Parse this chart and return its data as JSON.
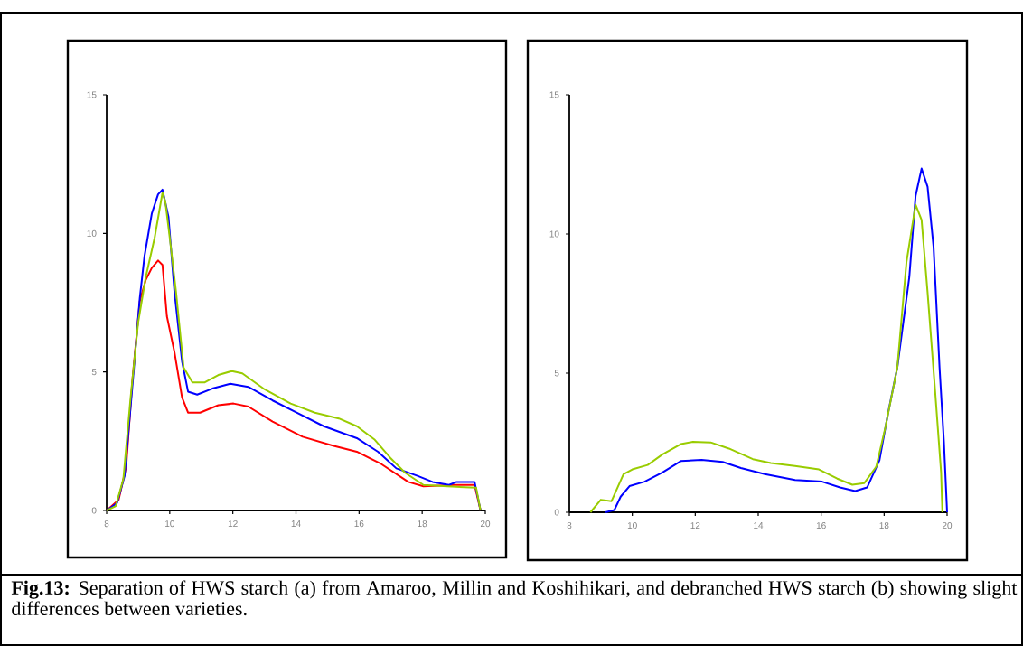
{
  "chart_data": [
    {
      "type": "line",
      "marker": "none",
      "xlim": [
        8,
        20
      ],
      "ylim": [
        0,
        15
      ],
      "xticks": [
        8,
        10,
        12,
        14,
        16,
        18,
        20
      ],
      "yticks": [
        0,
        5,
        10,
        15
      ],
      "series": [
        {
          "color": "#ff0000",
          "x": [
            8,
            8.38,
            8.62,
            8.81,
            9.05,
            9.24,
            9.43,
            9.63,
            9.77,
            9.91,
            10.15,
            10.39,
            10.58,
            10.96,
            11.54,
            12.02,
            12.49,
            13.26,
            14.21,
            15.17,
            15.93,
            16.7,
            17.56,
            18.04,
            19.0,
            19.66,
            19.85
          ],
          "values": [
            0,
            0.38,
            1.58,
            4.62,
            7.55,
            8.32,
            8.75,
            9.02,
            8.86,
            7.01,
            5.71,
            4.08,
            3.53,
            3.53,
            3.8,
            3.86,
            3.75,
            3.21,
            2.66,
            2.34,
            2.12,
            1.68,
            1.03,
            0.87,
            0.92,
            0.92,
            0
          ]
        },
        {
          "color": "#0000ff",
          "x": [
            8,
            8.33,
            8.57,
            8.81,
            9.05,
            9.2,
            9.43,
            9.63,
            9.77,
            9.96,
            10.15,
            10.39,
            10.58,
            10.87,
            11.35,
            11.92,
            12.49,
            13.26,
            14.02,
            14.88,
            15.93,
            16.6,
            17.18,
            17.85,
            18.33,
            18.85,
            19.09,
            19.66,
            19.85
          ],
          "values": [
            0,
            0.27,
            1.25,
            4.4,
            7.66,
            9.18,
            10.71,
            11.41,
            11.58,
            10.6,
            7.88,
            5.38,
            4.29,
            4.18,
            4.4,
            4.57,
            4.46,
            3.97,
            3.53,
            3.04,
            2.61,
            2.12,
            1.52,
            1.25,
            1.03,
            0.92,
            1.03,
            1.03,
            0
          ]
        },
        {
          "color": "#99cc00",
          "x": [
            8,
            8.29,
            8.53,
            8.76,
            9.0,
            9.24,
            9.52,
            9.77,
            9.86,
            10.0,
            10.2,
            10.44,
            10.72,
            11.1,
            11.54,
            11.97,
            12.3,
            12.97,
            13.83,
            14.6,
            15.36,
            15.93,
            16.5,
            16.99,
            17.46,
            18.04,
            18.8,
            19.71,
            19.85
          ],
          "values": [
            0,
            0.16,
            1.14,
            4.08,
            6.79,
            8.42,
            9.84,
            11.47,
            11.14,
            9.84,
            7.88,
            5.16,
            4.62,
            4.62,
            4.89,
            5.03,
            4.95,
            4.4,
            3.86,
            3.53,
            3.32,
            3.04,
            2.55,
            1.9,
            1.36,
            0.92,
            0.87,
            0.82,
            0
          ]
        }
      ],
      "annotations": [
        "**Fig.13:**  Separation of HWS starch (a) from Amaroo, Millin and Koshihikari, and debranched HWS starch (b) showing slight differences between varieties."
      ]
    },
    {
      "type": "line",
      "marker": "none",
      "xlim": [
        8,
        20
      ],
      "ylim": [
        0,
        15
      ],
      "xticks": [
        8,
        10,
        12,
        14,
        16,
        18,
        20
      ],
      "yticks": [
        0,
        5,
        10,
        15
      ],
      "series": [
        {
          "color": "#0000ff",
          "x": [
            9.15,
            9.43,
            9.63,
            9.91,
            10.39,
            10.96,
            11.54,
            12.2,
            12.87,
            13.45,
            14.21,
            15.17,
            16.03,
            16.6,
            17.08,
            17.46,
            17.85,
            18.13,
            18.42,
            18.8,
            19.0,
            19.19,
            19.38,
            19.57,
            19.76,
            19.9,
            20.0
          ],
          "values": [
            0,
            0.08,
            0.56,
            0.94,
            1.1,
            1.43,
            1.84,
            1.88,
            1.81,
            1.59,
            1.37,
            1.16,
            1.1,
            0.89,
            0.76,
            0.89,
            1.86,
            3.59,
            5.21,
            8.45,
            11.37,
            12.35,
            11.7,
            9.54,
            5.21,
            2.51,
            0
          ]
        },
        {
          "color": "#99cc00",
          "x": [
            8.67,
            9.0,
            9.34,
            9.72,
            10.0,
            10.49,
            10.96,
            11.54,
            11.92,
            12.49,
            13.07,
            13.83,
            14.4,
            15.17,
            15.93,
            16.51,
            16.99,
            17.37,
            17.75,
            18.04,
            18.42,
            18.71,
            19.0,
            19.19,
            19.38,
            19.62,
            19.81,
            19.85
          ],
          "values": [
            0,
            0.45,
            0.4,
            1.37,
            1.54,
            1.7,
            2.08,
            2.45,
            2.53,
            2.51,
            2.29,
            1.91,
            1.77,
            1.66,
            1.54,
            1.21,
            0.99,
            1.05,
            1.64,
            3.05,
            5.21,
            8.99,
            11.05,
            10.51,
            7.91,
            4.35,
            1.43,
            0
          ]
        }
      ]
    }
  ]
}
